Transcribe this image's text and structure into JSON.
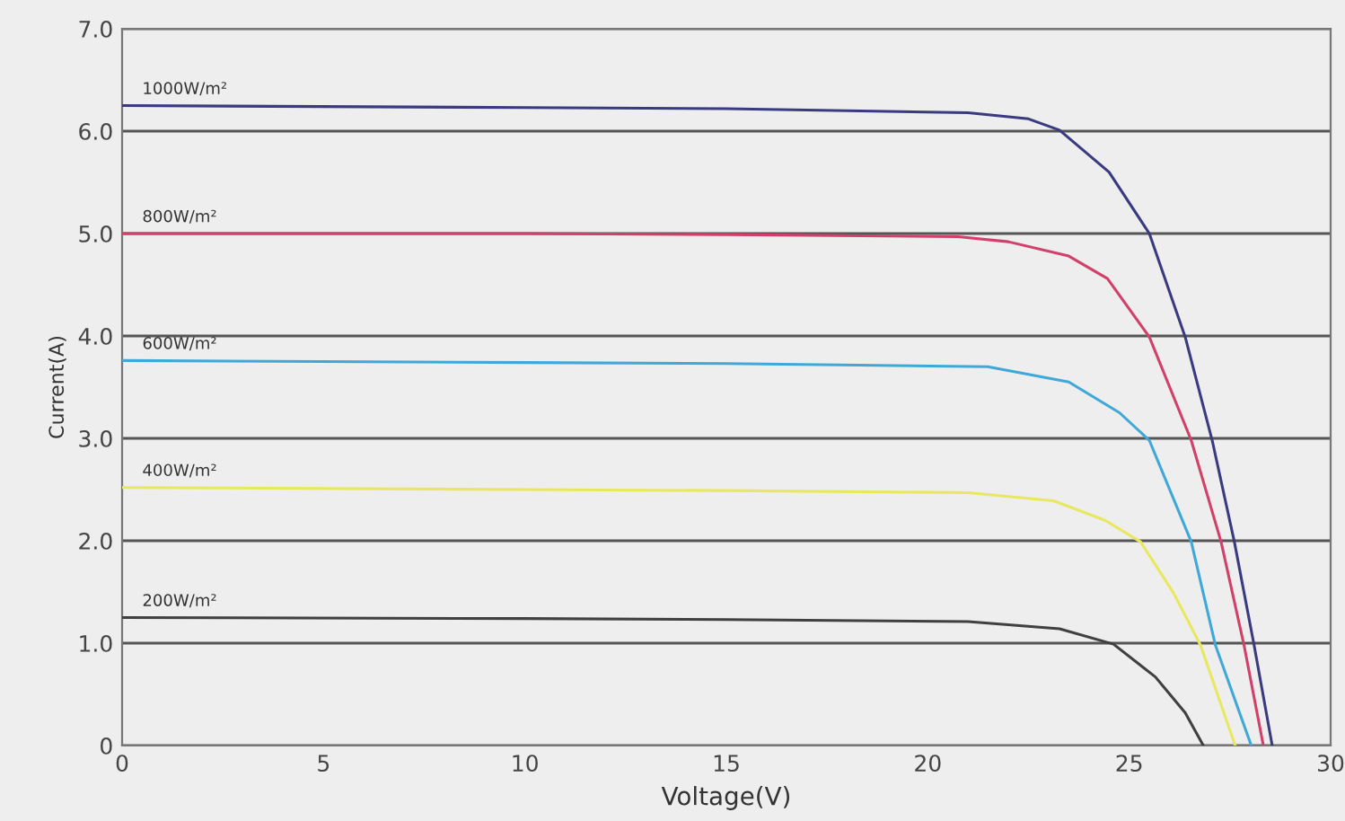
{
  "chart_data": {
    "type": "line",
    "xlabel": "Voltage(V)",
    "ylabel": "Current(A)",
    "xlim": [
      0,
      30
    ],
    "ylim": [
      0,
      7
    ],
    "xticks": [
      0,
      5,
      10,
      15,
      20,
      25,
      30
    ],
    "yticks": [
      0,
      {
        "value": 1,
        "label": "1.0"
      },
      {
        "value": 2,
        "label": "2.0"
      },
      {
        "value": 3,
        "label": "3.0"
      },
      {
        "value": 4,
        "label": "4.0"
      },
      {
        "value": 5,
        "label": "5.0"
      },
      {
        "value": 6,
        "label": "6.0"
      },
      {
        "value": 7,
        "label": "7.0"
      }
    ],
    "grid": "y",
    "legend": false,
    "marker": "none",
    "line_style": "solid",
    "series": [
      {
        "name": "1000W/m²",
        "color": "#3a3a80",
        "x": [
          0,
          10,
          15,
          21,
          22.5,
          23.27,
          24.5,
          25.5,
          26.39,
          27.06,
          27.61,
          28.1,
          28.55
        ],
        "values": [
          6.25,
          6.23,
          6.22,
          6.18,
          6.12,
          6.01,
          5.6,
          5.0,
          3.99,
          2.98,
          1.99,
          0.98,
          0
        ]
      },
      {
        "name": "800W/m²",
        "color": "#d0406a",
        "x": [
          0,
          10,
          15,
          20.75,
          22,
          23.5,
          24.46,
          25.5,
          26.54,
          27.28,
          27.85,
          28.33
        ],
        "values": [
          5.0,
          5.0,
          4.99,
          4.97,
          4.92,
          4.78,
          4.56,
          3.99,
          2.98,
          1.99,
          0.98,
          0
        ]
      },
      {
        "name": "600W/m²",
        "color": "#40a8d8",
        "x": [
          0,
          10,
          15,
          21.49,
          23.5,
          24.76,
          25.5,
          26.54,
          27.14,
          28.03
        ],
        "values": [
          3.76,
          3.74,
          3.73,
          3.7,
          3.55,
          3.25,
          2.98,
          1.99,
          0.98,
          0
        ]
      },
      {
        "name": "400W/m²",
        "color": "#e8e860",
        "x": [
          0,
          10,
          15,
          21,
          23.12,
          24.4,
          25.28,
          26.1,
          26.77,
          27.63
        ],
        "values": [
          2.52,
          2.5,
          2.49,
          2.47,
          2.39,
          2.2,
          1.99,
          1.49,
          0.98,
          0
        ]
      },
      {
        "name": "200W/m²",
        "color": "#404040",
        "x": [
          0,
          10,
          15,
          21,
          23.27,
          24.61,
          25.65,
          26.39,
          26.84
        ],
        "values": [
          1.25,
          1.24,
          1.23,
          1.21,
          1.14,
          0.99,
          0.67,
          0.32,
          0
        ]
      }
    ]
  }
}
